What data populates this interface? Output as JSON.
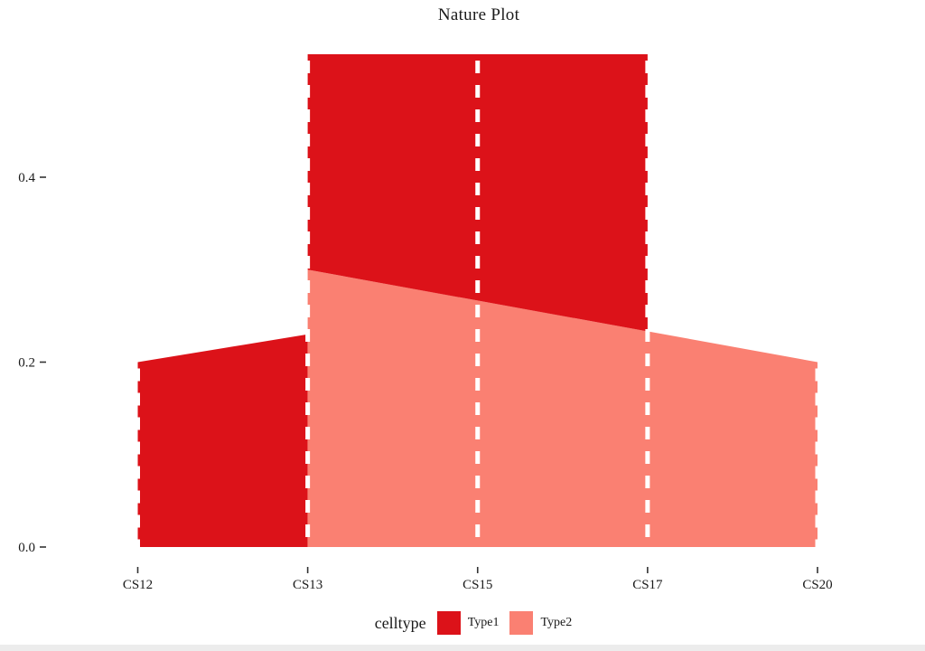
{
  "title": "Nature Plot",
  "colors": {
    "type1": "#DC1219",
    "type2": "#FA8072",
    "stratum_dash": "#FFFFFF",
    "axis_text": "#1A1A1A"
  },
  "y_axis": {
    "tick_labels": [
      "0.0",
      "0.2",
      "0.4"
    ],
    "tick_values": [
      0.0,
      0.2,
      0.4
    ]
  },
  "x_axis": {
    "labels": [
      "CS12",
      "CS13",
      "CS15",
      "CS17",
      "CS20"
    ]
  },
  "legend": {
    "title": "celltype",
    "items": [
      {
        "label": "Type1",
        "color_key": "type1"
      },
      {
        "label": "Type2",
        "color_key": "type2"
      }
    ]
  },
  "chart_data": {
    "type": "area",
    "variant": "alluvial-flow",
    "title": "Nature Plot",
    "xlabel": "",
    "ylabel": "",
    "categories": [
      "CS12",
      "CS13",
      "CS15",
      "CS17",
      "CS20"
    ],
    "series": [
      {
        "name": "Type1",
        "color_key": "type1",
        "values": [
          0.2,
          0.23,
          0.27,
          0.3,
          0.0
        ]
      },
      {
        "name": "Type2",
        "color_key": "type2",
        "values": [
          0.0,
          0.3,
          0.27,
          0.23,
          0.2
        ]
      }
    ],
    "stack_totals": [
      0.2,
      0.533,
      0.533,
      0.533,
      0.2
    ],
    "ylim": [
      0,
      0.55
    ],
    "grid": false,
    "legend_position": "bottom",
    "geometry": {
      "flows": [
        {
          "name": "type1-flow-cs12-cs13",
          "color_key": "type1",
          "points": [
            [
              0,
              0
            ],
            [
              0,
              0.2
            ],
            [
              1,
              0.23
            ],
            [
              1,
              0
            ]
          ]
        },
        {
          "name": "type2-flow-cs13-cs20",
          "color_key": "type2",
          "points": [
            [
              1,
              0
            ],
            [
              1,
              0.3
            ],
            [
              4,
              0.2
            ],
            [
              4,
              0
            ]
          ]
        },
        {
          "name": "type1-flow-cs13-cs17",
          "color_key": "type1",
          "points": [
            [
              1,
              0.3
            ],
            [
              1,
              0.533
            ],
            [
              3,
              0.533
            ],
            [
              3,
              0.2333
            ]
          ]
        }
      ],
      "strata": [
        {
          "index": 0,
          "top": 0.2
        },
        {
          "index": 1,
          "top": 0.533
        },
        {
          "index": 2,
          "top": 0.533
        },
        {
          "index": 3,
          "top": 0.533
        },
        {
          "index": 4,
          "top": 0.2
        }
      ]
    }
  }
}
